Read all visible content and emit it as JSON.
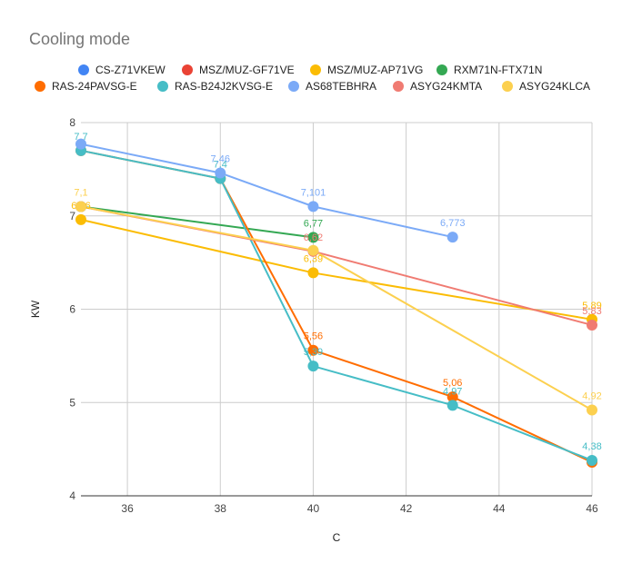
{
  "chart_data": {
    "type": "line",
    "title": "Cooling mode",
    "xlabel": "C",
    "ylabel": "KW",
    "xlim": [
      35,
      46
    ],
    "ylim": [
      4,
      8
    ],
    "x_ticks": [
      36,
      38,
      40,
      42,
      44,
      46
    ],
    "y_ticks": [
      4,
      5,
      6,
      7,
      8
    ],
    "grid": true,
    "legend_position": "top",
    "series": [
      {
        "name": "CS-Z71VKEW",
        "color": "#4285f4",
        "points": [],
        "labels": []
      },
      {
        "name": "MSZ/MUZ-GF71VE",
        "color": "#ea4335",
        "points": [],
        "labels": []
      },
      {
        "name": "MSZ/MUZ-AP71VG",
        "color": "#fbbc04",
        "points": [
          [
            35,
            6.96
          ],
          [
            40,
            6.39
          ],
          [
            46,
            5.89
          ]
        ],
        "labels": [
          "6,96",
          "6,39",
          "5,89"
        ]
      },
      {
        "name": "RXM71N-FTX71N",
        "color": "#34a853",
        "points": [
          [
            35,
            7.1
          ],
          [
            40,
            6.77
          ]
        ],
        "labels": [
          "",
          "6,77"
        ]
      },
      {
        "name": "RAS-24PAVSG-E",
        "color": "#ff6d01",
        "points": [
          [
            35,
            7.7
          ],
          [
            38,
            7.4
          ],
          [
            40,
            5.56
          ],
          [
            43,
            5.06
          ],
          [
            46,
            4.36
          ]
        ],
        "labels": [
          "",
          "",
          "5,56",
          "5,06",
          ""
        ]
      },
      {
        "name": "RAS-B24J2KVSG-E",
        "color": "#46bdc6",
        "points": [
          [
            35,
            7.7
          ],
          [
            38,
            7.4
          ],
          [
            40,
            5.39
          ],
          [
            43,
            4.97
          ],
          [
            46,
            4.38
          ]
        ],
        "labels": [
          "7,7",
          "7,4",
          "5,39",
          "4,97",
          "4,38"
        ]
      },
      {
        "name": "AS68TEBHRA",
        "color": "#7baaf7",
        "points": [
          [
            35,
            7.77
          ],
          [
            38,
            7.46
          ],
          [
            40,
            7.101
          ],
          [
            43,
            6.773
          ]
        ],
        "labels": [
          "",
          "7,46",
          "7,101",
          "6,773"
        ]
      },
      {
        "name": "ASYG24KMTA",
        "color": "#f07b72",
        "points": [
          [
            35,
            7.1
          ],
          [
            40,
            6.62
          ],
          [
            46,
            5.83
          ]
        ],
        "labels": [
          "",
          "6,62",
          "5,83"
        ]
      },
      {
        "name": "ASYG24KLCA",
        "color": "#fcd04f",
        "points": [
          [
            35,
            7.1
          ],
          [
            40,
            6.63
          ],
          [
            46,
            4.92
          ]
        ],
        "labels": [
          "7,1",
          "",
          "4,92"
        ]
      }
    ]
  }
}
